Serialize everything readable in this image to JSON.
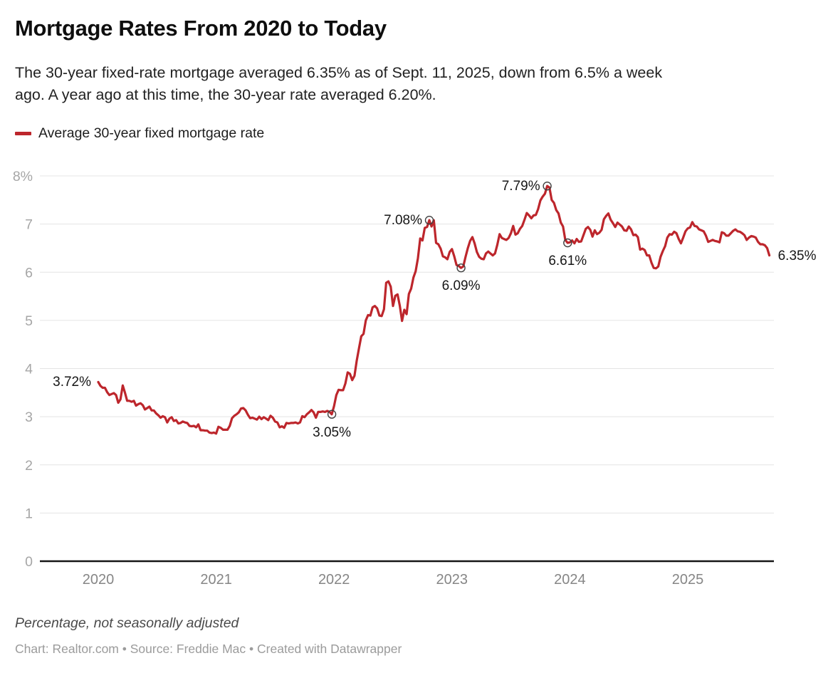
{
  "header": {
    "title": "Mortgage Rates From 2020 to Today",
    "subtitle_lines": [
      "The 30-year fixed-rate mortgage averaged 6.35% as of Sept. 11, 2025, down from 6.5% a week",
      "ago. A year ago at this time, the 30-year rate averaged 6.20%."
    ]
  },
  "legend": {
    "label": "Average 30-year fixed mortgage rate",
    "swatch_color": "#bd262c"
  },
  "footer": {
    "note": "Percentage, not seasonally adjusted",
    "credit": "Chart: Realtor.com • Source: Freddie Mac • Created with Datawrapper"
  },
  "chart_data": {
    "type": "line",
    "title": "Mortgage Rates From 2020 to Today",
    "xlabel": "",
    "ylabel": "Percentage, not seasonally adjusted",
    "unit": "%",
    "ylim": [
      0,
      8
    ],
    "grid": "horizontal",
    "legend_position": "top-left",
    "legend_entries": [
      "Average 30-year fixed mortgage rate"
    ],
    "x_axis": {
      "ticks": [
        {
          "label": "2020",
          "value": 2020
        },
        {
          "label": "2021",
          "value": 2021
        },
        {
          "label": "2022",
          "value": 2022
        },
        {
          "label": "2023",
          "value": 2023
        },
        {
          "label": "2024",
          "value": 2024
        },
        {
          "label": "2025",
          "value": 2025
        }
      ]
    },
    "y_axis": {
      "min": 0,
      "max": 8,
      "ticks": [
        {
          "label": "0",
          "value": 0
        },
        {
          "label": "1",
          "value": 1
        },
        {
          "label": "2",
          "value": 2
        },
        {
          "label": "3",
          "value": 3
        },
        {
          "label": "4",
          "value": 4
        },
        {
          "label": "5",
          "value": 5
        },
        {
          "label": "6",
          "value": 6
        },
        {
          "label": "7",
          "value": 7
        },
        {
          "label": "8%",
          "value": 8
        }
      ]
    },
    "series": [
      {
        "name": "Average 30-year fixed mortgage rate",
        "color": "#bd262c",
        "frequency": "weekly",
        "data_by_year": [
          {
            "year": 2020,
            "weeks": 53,
            "values": [
              3.72,
              3.64,
              3.6,
              3.6,
              3.51,
              3.45,
              3.47,
              3.49,
              3.45,
              3.29,
              3.36,
              3.65,
              3.5,
              3.33,
              3.33,
              3.31,
              3.33,
              3.23,
              3.26,
              3.28,
              3.24,
              3.15,
              3.18,
              3.21,
              3.13,
              3.13,
              3.07,
              3.03,
              2.98,
              3.01,
              2.99,
              2.88,
              2.96,
              2.99,
              2.91,
              2.93,
              2.86,
              2.87,
              2.9,
              2.88,
              2.87,
              2.81,
              2.8,
              2.81,
              2.78,
              2.84,
              2.72,
              2.72,
              2.71,
              2.71,
              2.67,
              2.66,
              2.67
            ]
          },
          {
            "year": 2021,
            "weeks": 52,
            "values": [
              2.65,
              2.79,
              2.77,
              2.73,
              2.73,
              2.73,
              2.81,
              2.97,
              3.02,
              3.05,
              3.09,
              3.17,
              3.18,
              3.13,
              3.04,
              2.97,
              2.98,
              2.96,
              2.94,
              3.0,
              2.95,
              2.99,
              2.96,
              2.93,
              3.02,
              2.98,
              2.9,
              2.88,
              2.78,
              2.8,
              2.77,
              2.87,
              2.86,
              2.87,
              2.87,
              2.88,
              2.86,
              2.88,
              3.01,
              2.99,
              3.05,
              3.09,
              3.14,
              3.09,
              2.98,
              3.1,
              3.1,
              3.11,
              3.1,
              3.12,
              3.1,
              3.05
            ]
          },
          {
            "year": 2022,
            "weeks": 52,
            "values": [
              3.22,
              3.45,
              3.56,
              3.55,
              3.55,
              3.69,
              3.92,
              3.89,
              3.76,
              3.85,
              4.16,
              4.42,
              4.67,
              4.72,
              5.0,
              5.11,
              5.1,
              5.27,
              5.3,
              5.25,
              5.1,
              5.09,
              5.23,
              5.78,
              5.81,
              5.7,
              5.3,
              5.51,
              5.54,
              5.3,
              4.99,
              5.22,
              5.13,
              5.55,
              5.66,
              5.89,
              6.02,
              6.29,
              6.7,
              6.66,
              6.92,
              6.94,
              7.08,
              6.95,
              7.08,
              6.61,
              6.58,
              6.49,
              6.33,
              6.31,
              6.27,
              6.42
            ]
          },
          {
            "year": 2023,
            "weeks": 52,
            "values": [
              6.48,
              6.33,
              6.15,
              6.13,
              6.09,
              6.12,
              6.32,
              6.5,
              6.65,
              6.73,
              6.6,
              6.42,
              6.32,
              6.28,
              6.27,
              6.39,
              6.43,
              6.39,
              6.35,
              6.39,
              6.57,
              6.79,
              6.71,
              6.69,
              6.67,
              6.71,
              6.81,
              6.96,
              6.78,
              6.81,
              6.9,
              6.96,
              7.09,
              7.23,
              7.18,
              7.12,
              7.18,
              7.19,
              7.31,
              7.49,
              7.57,
              7.63,
              7.79,
              7.76,
              7.5,
              7.44,
              7.29,
              7.22,
              7.03,
              6.95,
              6.67,
              6.61
            ]
          },
          {
            "year": 2024,
            "weeks": 52,
            "values": [
              6.62,
              6.66,
              6.6,
              6.69,
              6.63,
              6.64,
              6.77,
              6.9,
              6.94,
              6.88,
              6.74,
              6.87,
              6.79,
              6.82,
              6.88,
              7.1,
              7.17,
              7.22,
              7.09,
              7.02,
              6.94,
              7.03,
              6.99,
              6.95,
              6.87,
              6.86,
              6.95,
              6.89,
              6.77,
              6.78,
              6.73,
              6.47,
              6.49,
              6.46,
              6.35,
              6.35,
              6.2,
              6.09,
              6.08,
              6.12,
              6.32,
              6.44,
              6.54,
              6.72,
              6.79,
              6.78,
              6.84,
              6.81,
              6.69,
              6.6,
              6.72,
              6.85
            ]
          },
          {
            "year": 2025,
            "weeks": 52,
            "values": [
              6.91,
              6.93,
              7.04,
              6.96,
              6.95,
              6.89,
              6.87,
              6.85,
              6.76,
              6.63,
              6.65,
              6.67,
              6.65,
              6.64,
              6.62,
              6.83,
              6.81,
              6.76,
              6.76,
              6.81,
              6.86,
              6.89,
              6.85,
              6.84,
              6.81,
              6.77,
              6.67,
              6.72,
              6.75,
              6.74,
              6.72,
              6.63,
              6.58,
              6.58,
              6.56,
              6.5,
              6.35
            ]
          }
        ]
      }
    ],
    "annotations": [
      {
        "label": "3.72%",
        "x": 2020.0,
        "value": 3.72,
        "placement": "left",
        "marker": false
      },
      {
        "label": "3.05%",
        "x": 2021.981,
        "value": 3.05,
        "placement": "below",
        "marker": true
      },
      {
        "label": "7.08%",
        "x": 2022.808,
        "value": 7.08,
        "placement": "left",
        "marker": true
      },
      {
        "label": "6.09%",
        "x": 2023.077,
        "value": 6.09,
        "placement": "below",
        "marker": true
      },
      {
        "label": "7.79%",
        "x": 2023.808,
        "value": 7.79,
        "placement": "left",
        "marker": true
      },
      {
        "label": "6.61%",
        "x": 2023.981,
        "value": 6.61,
        "placement": "below",
        "marker": true
      },
      {
        "label": "6.35%",
        "x": 2025.692,
        "value": 6.35,
        "placement": "right",
        "marker": false
      }
    ]
  }
}
